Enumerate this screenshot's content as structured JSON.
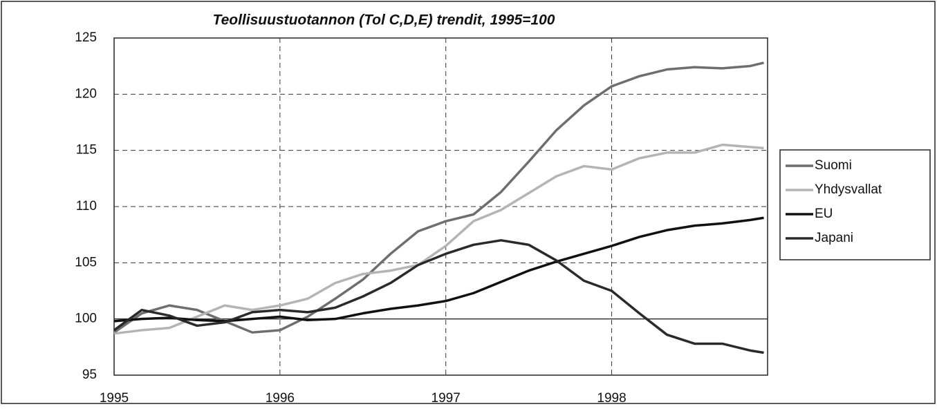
{
  "chart_data": {
    "type": "line",
    "title": "Teollisuustuotannon (Tol C,D,E) trendit, 1995=100",
    "x": [
      1995,
      1995.167,
      1995.333,
      1995.5,
      1995.667,
      1995.833,
      1996,
      1996.167,
      1996.333,
      1996.5,
      1996.667,
      1996.833,
      1997,
      1997.167,
      1997.333,
      1997.5,
      1997.667,
      1997.833,
      1998,
      1998.167,
      1998.333,
      1998.5,
      1998.667,
      1998.833,
      1998.917
    ],
    "series": [
      {
        "name": "Suomi",
        "color": "#6e6e6e",
        "values": [
          98.8,
          100.5,
          101.2,
          100.8,
          99.8,
          98.8,
          99.0,
          100.2,
          101.8,
          103.5,
          105.8,
          107.8,
          108.7,
          109.3,
          111.3,
          114.0,
          116.8,
          119.0,
          120.7,
          121.6,
          122.2,
          122.4,
          122.3,
          122.5,
          122.8
        ]
      },
      {
        "name": "Yhdysvallat",
        "color": "#b4b4b4",
        "values": [
          98.7,
          99.0,
          99.2,
          100.2,
          101.2,
          100.8,
          101.2,
          101.8,
          103.2,
          104.0,
          104.3,
          104.8,
          106.5,
          108.7,
          109.7,
          111.2,
          112.7,
          113.6,
          113.3,
          114.3,
          114.8,
          114.8,
          115.5,
          115.3,
          115.2
        ]
      },
      {
        "name": "EU",
        "color": "#111111",
        "values": [
          99.8,
          100.0,
          100.1,
          99.9,
          99.8,
          100.0,
          100.2,
          99.9,
          100.0,
          100.5,
          100.9,
          101.2,
          101.6,
          102.3,
          103.3,
          104.3,
          105.1,
          105.8,
          106.5,
          107.3,
          107.9,
          108.3,
          108.5,
          108.8,
          109.0
        ]
      },
      {
        "name": "Japani",
        "color": "#2a2a2a",
        "values": [
          99.0,
          100.8,
          100.3,
          99.4,
          99.7,
          100.6,
          100.8,
          100.6,
          101.0,
          102.0,
          103.2,
          104.8,
          105.8,
          106.6,
          107.0,
          106.6,
          105.2,
          103.4,
          102.5,
          100.5,
          98.6,
          97.8,
          97.8,
          97.2,
          97.0
        ]
      }
    ],
    "xlim": [
      1995,
      1998.94
    ],
    "xticks": [
      1995,
      1996,
      1997,
      1998
    ],
    "ylim": [
      95,
      125
    ],
    "yticks": [
      95,
      100,
      105,
      110,
      115,
      120,
      125
    ],
    "baseline": 100,
    "grid": true,
    "legend": "right"
  }
}
